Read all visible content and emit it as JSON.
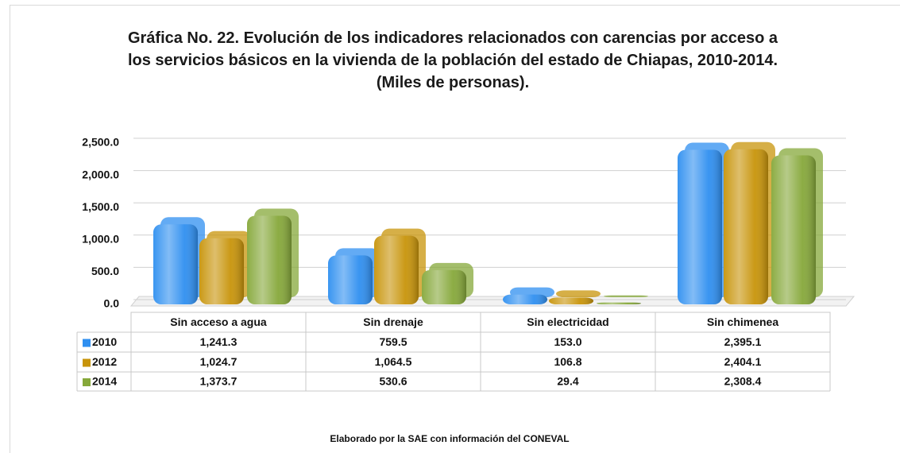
{
  "chart_data": {
    "type": "bar",
    "title": "Gráfica No. 22. Evolución de los indicadores relacionados con carencias por acceso a los servicios básicos en la vivienda de la población del estado de Chiapas, 2010-2014. (Miles de personas).",
    "categories": [
      "Sin acceso a agua",
      "Sin drenaje",
      "Sin electricidad",
      "Sin chimenea"
    ],
    "series": [
      {
        "name": "2010",
        "color": "#2f8ff0",
        "values": [
          1241.3,
          759.5,
          153.0,
          2395.1
        ],
        "value_labels": [
          "1,241.3",
          "759.5",
          "153.0",
          "2,395.1"
        ]
      },
      {
        "name": "2012",
        "color": "#c8940a",
        "values": [
          1024.7,
          1064.5,
          106.8,
          2404.1
        ],
        "value_labels": [
          "1,024.7",
          "1,064.5",
          "106.8",
          "2,404.1"
        ]
      },
      {
        "name": "2014",
        "color": "#86a83a",
        "values": [
          1373.7,
          530.6,
          29.4,
          2308.4
        ],
        "value_labels": [
          "1,373.7",
          "530.6",
          "29.4",
          "2,308.4"
        ]
      }
    ],
    "ylim": [
      0,
      2500
    ],
    "yticks": [
      {
        "value": 0,
        "label": "0.0"
      },
      {
        "value": 500,
        "label": "500.0"
      },
      {
        "value": 1000,
        "label": "1,000.0"
      },
      {
        "value": 1500,
        "label": "1,500.0"
      },
      {
        "value": 2000,
        "label": "2,000.0"
      },
      {
        "value": 2500,
        "label": "2,500.0"
      }
    ],
    "grid": true,
    "source": "Elaborado por la SAE con información del CONEVAL"
  }
}
